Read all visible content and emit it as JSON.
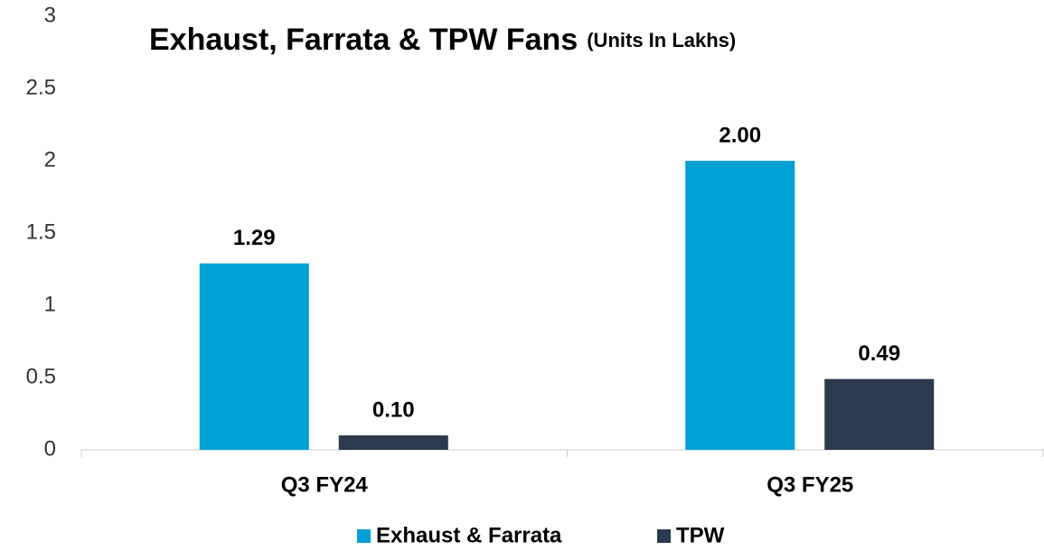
{
  "chart_data": {
    "type": "bar",
    "title": "Exhaust, Farrata & TPW  Fans",
    "subtitle": "(Units In Lakhs)",
    "categories": [
      "Q3 FY24",
      "Q3 FY25"
    ],
    "series": [
      {
        "name": "Exhaust & Farrata",
        "color": "#00a0d6",
        "values": [
          1.29,
          2.0
        ],
        "value_labels": [
          "1.29",
          "2.00"
        ]
      },
      {
        "name": "TPW",
        "color": "#2b3a4e",
        "values": [
          0.1,
          0.49
        ],
        "value_labels": [
          "0.10",
          "0.49"
        ]
      }
    ],
    "ylim": [
      0,
      3
    ],
    "yticks": [
      0,
      0.5,
      1,
      1.5,
      2,
      2.5,
      3
    ],
    "grid": false,
    "legend": "bottom"
  }
}
